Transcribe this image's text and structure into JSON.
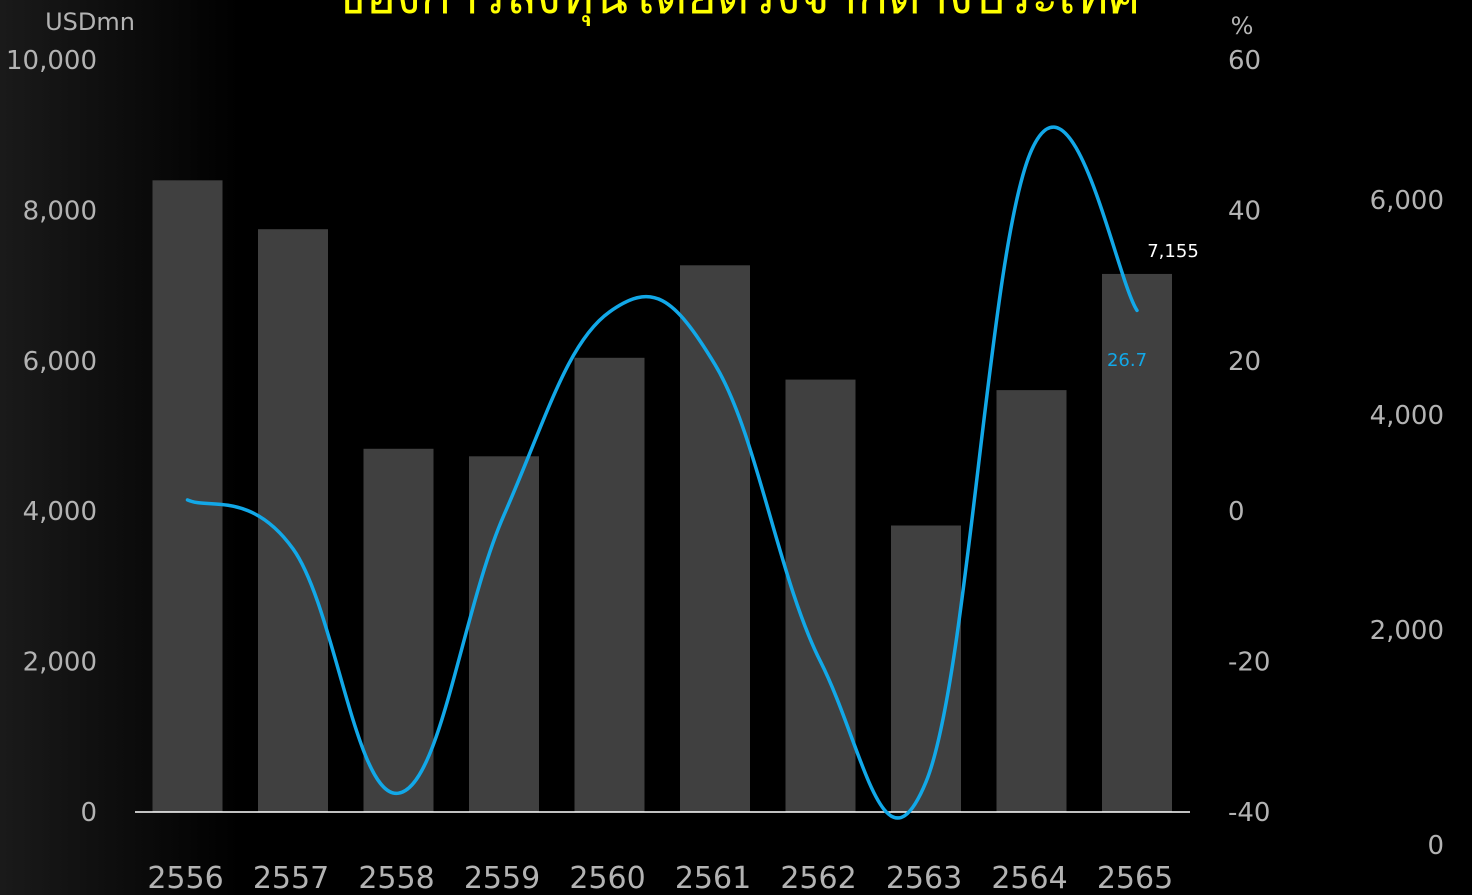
{
  "title": "ของการลงทุนโดยตรงจากต่างประเทศ",
  "colors": {
    "bar": "#404040",
    "line": "#12a8e8",
    "title": "#ffff00",
    "axis_text": "#b3b3b3",
    "baseline": "#ffffff"
  },
  "chart_data": {
    "type": "bar",
    "categories": [
      "2556",
      "2557",
      "2558",
      "2559",
      "2560",
      "2561",
      "2562",
      "2563",
      "2564",
      "2565"
    ],
    "series": [
      {
        "type": "bar",
        "axis": "left",
        "values": [
          8400,
          7750,
          4830,
          4730,
          6040,
          7270,
          5750,
          3810,
          5610,
          7155
        ]
      },
      {
        "type": "line",
        "axis": "right",
        "values": [
          1.5,
          -5,
          -37.5,
          -0.5,
          26.5,
          19.5,
          -20,
          -36,
          48,
          26.7
        ]
      }
    ],
    "y_left": {
      "unit": "USDmn",
      "range": [
        0,
        10000
      ],
      "ticks": [
        "0",
        "2,000",
        "4,000",
        "6,000",
        "8,000",
        "10,000"
      ]
    },
    "y_right": {
      "unit": "%",
      "range": [
        -40,
        60
      ],
      "ticks": [
        "-40",
        "-20",
        "0",
        "20",
        "40",
        "60"
      ]
    },
    "y_far_right": {
      "ticks": [
        "0",
        "2,000",
        "4,000",
        "6,000"
      ]
    },
    "data_labels": {
      "bar_last": "7,155",
      "line_last": "26.7"
    },
    "grid": false,
    "legend": "none"
  }
}
